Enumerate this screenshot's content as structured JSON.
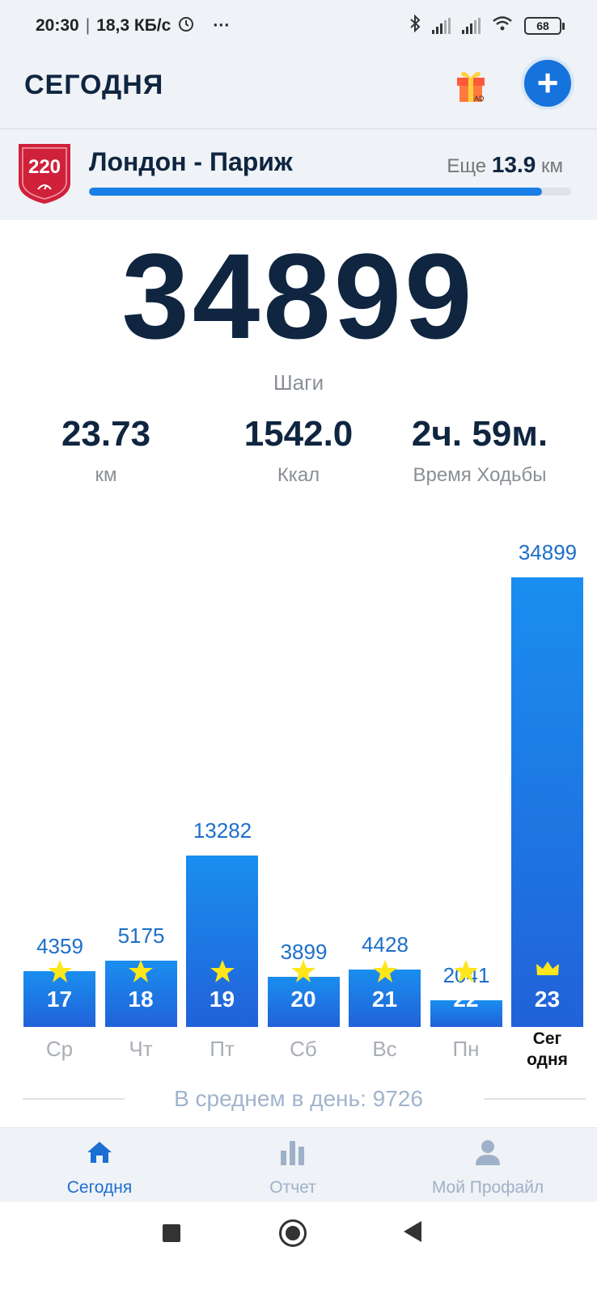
{
  "status_bar": {
    "time": "20:30",
    "speed": "18,3 КБ/с",
    "more": "···",
    "battery": "68"
  },
  "header": {
    "title": "СЕГОДНЯ",
    "gift_ad": "AD",
    "add": "+"
  },
  "route": {
    "badge": "220",
    "name": "Лондон - Париж",
    "remaining_prefix": "Еще",
    "remaining_value": "13.9",
    "remaining_unit": "км",
    "progress": 0.94
  },
  "summary": {
    "steps": "34899",
    "steps_label": "Шаги",
    "distance": "23.73",
    "distance_label": "км",
    "calories": "1542.0",
    "calories_label": "Ккал",
    "time": "2ч. 59м.",
    "time_label": "Время Ходьбы"
  },
  "chart_data": {
    "type": "bar",
    "categories": [
      "Ср",
      "Чт",
      "Пт",
      "Сб",
      "Вс",
      "Пн",
      "Сег одня"
    ],
    "dates": [
      "17",
      "18",
      "19",
      "20",
      "21",
      "22",
      "23"
    ],
    "values": [
      4359,
      5175,
      13282,
      3899,
      4428,
      2041,
      34899
    ],
    "markers": [
      "star",
      "star",
      "star",
      "star",
      "star",
      "star",
      "crown"
    ],
    "today_label_lines": [
      "Сег",
      "одня"
    ],
    "title": "",
    "xlabel": "",
    "ylabel": "",
    "ylim": [
      0,
      34899
    ],
    "colors": {
      "bar_top": "#1a8ef0",
      "bar_bottom": "#2162d8",
      "value_text": "#1c6fc9",
      "star": "#ffe61a"
    }
  },
  "average": {
    "text": "В среднем в день: 9726"
  },
  "bottom_nav": {
    "items": [
      {
        "label": "Сегодня",
        "icon": "home-icon",
        "active": true
      },
      {
        "label": "Отчет",
        "icon": "bar-chart-icon",
        "active": false
      },
      {
        "label": "Мой Профайл",
        "icon": "profile-icon",
        "active": false
      }
    ]
  },
  "colors": {
    "accent": "#1672dc",
    "title": "#0f2540",
    "muted": "#8a8f96",
    "nav_active": "#1a6fd0",
    "nav_inactive": "#9fb1c8"
  }
}
